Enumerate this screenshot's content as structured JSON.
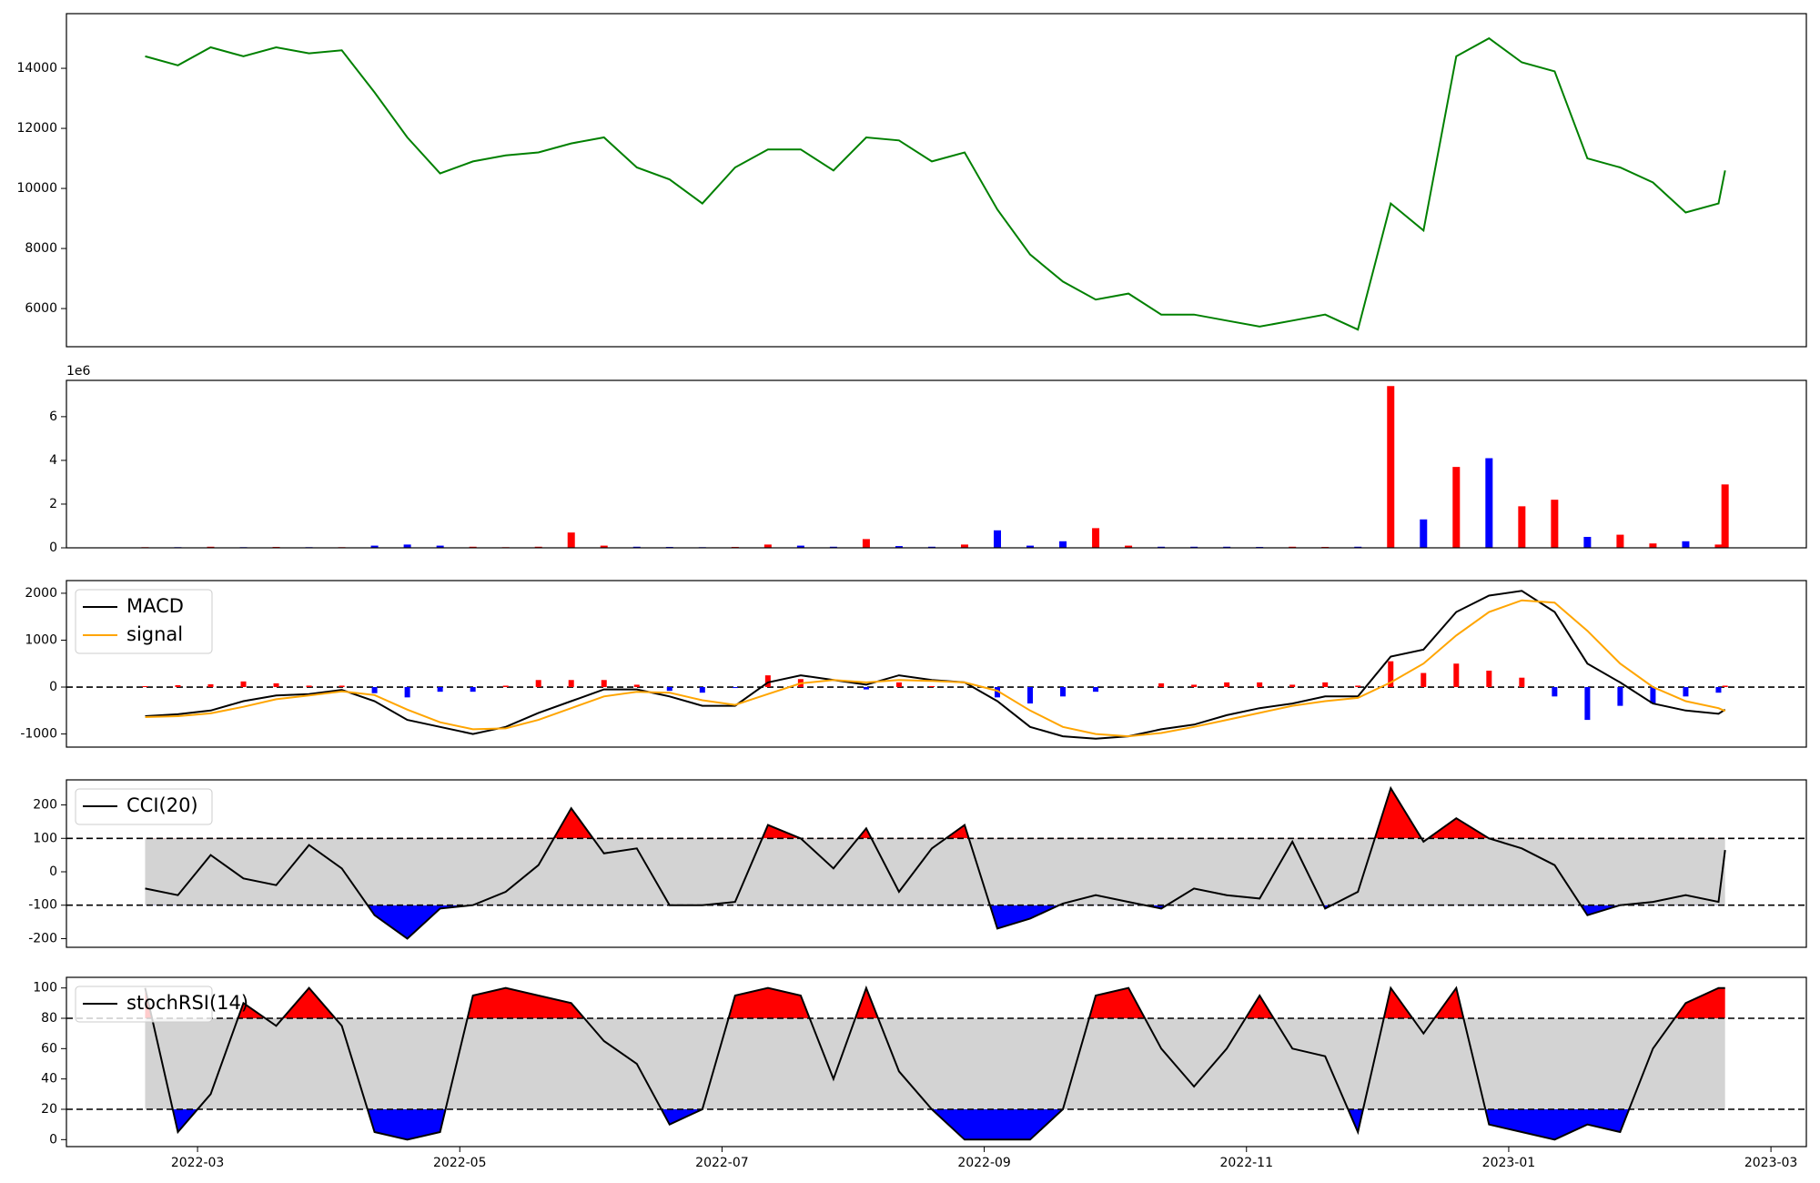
{
  "chart_data": [
    {
      "type": "line",
      "xlim": [
        2.0,
        15.27
      ],
      "ylim": [
        4730,
        15820
      ],
      "yticks": [
        6000,
        8000,
        10000,
        12000,
        14000
      ],
      "x": [
        2.6,
        2.85,
        3.1,
        3.35,
        3.6,
        3.85,
        4.1,
        4.35,
        4.6,
        4.85,
        5.1,
        5.35,
        5.6,
        5.85,
        6.1,
        6.35,
        6.6,
        6.85,
        7.1,
        7.35,
        7.6,
        7.85,
        8.1,
        8.35,
        8.6,
        8.85,
        9.1,
        9.35,
        9.6,
        9.85,
        10.1,
        10.35,
        10.6,
        10.85,
        11.1,
        11.35,
        11.6,
        11.85,
        12.1,
        12.35,
        12.6,
        12.85,
        13.1,
        13.35,
        13.6,
        13.85,
        14.1,
        14.35,
        14.6,
        14.65
      ],
      "series": [
        {
          "color": "#008000",
          "values": [
            14400,
            14100,
            14700,
            14400,
            14700,
            14500,
            14600,
            13200,
            11700,
            10500,
            10900,
            11100,
            11200,
            11500,
            11700,
            10700,
            10300,
            9500,
            10700,
            11300,
            11300,
            10600,
            11700,
            11600,
            10900,
            11200,
            9300,
            7800,
            6900,
            6300,
            6500,
            5800,
            5800,
            5600,
            5400,
            5600,
            5800,
            5300,
            9500,
            8600,
            14400,
            15000,
            14200,
            13900,
            11000,
            10700,
            10200,
            9200,
            9500,
            10600
          ]
        }
      ]
    },
    {
      "type": "bar",
      "xlim": [
        2.0,
        15.27
      ],
      "ylim": [
        0,
        7.66
      ],
      "yticks": [
        0,
        2,
        4,
        6
      ],
      "offset_label": "1e6",
      "x": [
        2.6,
        2.85,
        3.1,
        3.35,
        3.6,
        3.85,
        4.1,
        4.35,
        4.6,
        4.85,
        5.1,
        5.35,
        5.6,
        5.85,
        6.1,
        6.35,
        6.6,
        6.85,
        7.1,
        7.35,
        7.6,
        7.85,
        8.1,
        8.35,
        8.6,
        8.85,
        9.1,
        9.35,
        9.6,
        9.85,
        10.1,
        10.35,
        10.6,
        10.85,
        11.1,
        11.35,
        11.6,
        11.85,
        12.1,
        12.35,
        12.6,
        12.85,
        13.1,
        13.35,
        13.6,
        13.85,
        14.1,
        14.35,
        14.6,
        14.65
      ],
      "values": [
        0.03,
        0.03,
        0.05,
        0.03,
        0.04,
        0.03,
        0.03,
        0.1,
        0.15,
        0.1,
        0.05,
        0.03,
        0.05,
        0.7,
        0.1,
        0.05,
        0.04,
        0.03,
        0.04,
        0.15,
        0.1,
        0.05,
        0.4,
        0.08,
        0.05,
        0.15,
        0.8,
        0.1,
        0.3,
        0.9,
        0.1,
        0.05,
        0.05,
        0.05,
        0.04,
        0.05,
        0.04,
        0.05,
        7.4,
        1.3,
        3.7,
        4.1,
        1.9,
        2.2,
        0.5,
        0.6,
        0.2,
        0.3,
        0.15,
        2.9
      ],
      "colors": [
        "red",
        "blue",
        "red",
        "blue",
        "red",
        "blue",
        "red",
        "blue",
        "blue",
        "blue",
        "red",
        "red",
        "red",
        "red",
        "red",
        "blue",
        "blue",
        "blue",
        "red",
        "red",
        "blue",
        "blue",
        "red",
        "blue",
        "blue",
        "red",
        "blue",
        "blue",
        "blue",
        "red",
        "red",
        "blue",
        "blue",
        "blue",
        "blue",
        "red",
        "red",
        "blue",
        "red",
        "blue",
        "red",
        "blue",
        "red",
        "red",
        "blue",
        "red",
        "red",
        "blue",
        "red",
        "red"
      ]
    },
    {
      "type": "line",
      "xlim": [
        2.0,
        15.27
      ],
      "ylim": [
        -1280,
        2270
      ],
      "yticks": [
        -1000,
        0,
        1000,
        2000
      ],
      "hline": 0,
      "legend": "upper left",
      "x": [
        2.6,
        2.85,
        3.1,
        3.35,
        3.6,
        3.85,
        4.1,
        4.35,
        4.6,
        4.85,
        5.1,
        5.35,
        5.6,
        5.85,
        6.1,
        6.35,
        6.6,
        6.85,
        7.1,
        7.35,
        7.6,
        7.85,
        8.1,
        8.35,
        8.6,
        8.85,
        9.1,
        9.35,
        9.6,
        9.85,
        10.1,
        10.35,
        10.6,
        10.85,
        11.1,
        11.35,
        11.6,
        11.85,
        12.1,
        12.35,
        12.6,
        12.85,
        13.1,
        13.35,
        13.6,
        13.85,
        14.1,
        14.35,
        14.6,
        14.65
      ],
      "series": [
        {
          "name": "MACD",
          "color": "#000000",
          "values": [
            -620,
            -580,
            -500,
            -300,
            -180,
            -150,
            -60,
            -300,
            -700,
            -850,
            -1000,
            -850,
            -550,
            -300,
            -50,
            -50,
            -200,
            -400,
            -400,
            100,
            250,
            150,
            50,
            250,
            150,
            100,
            -300,
            -850,
            -1050,
            -1100,
            -1050,
            -900,
            -800,
            -600,
            -450,
            -350,
            -200,
            -200,
            650,
            800,
            1600,
            1950,
            2050,
            1600,
            500,
            100,
            -350,
            -500,
            -570,
            -480
          ]
        },
        {
          "name": "signal",
          "color": "#ffa500",
          "values": [
            -640,
            -620,
            -560,
            -420,
            -260,
            -180,
            -90,
            -170,
            -480,
            -750,
            -900,
            -880,
            -700,
            -450,
            -200,
            -100,
            -120,
            -280,
            -380,
            -150,
            80,
            150,
            100,
            150,
            130,
            100,
            -80,
            -500,
            -850,
            -1000,
            -1050,
            -980,
            -850,
            -700,
            -550,
            -400,
            -300,
            -230,
            100,
            500,
            1100,
            1600,
            1850,
            1800,
            1200,
            500,
            0,
            -300,
            -450,
            -510
          ]
        }
      ],
      "histogram": {
        "up_color": "red",
        "down_color": "blue",
        "values": [
          20,
          40,
          60,
          120,
          80,
          30,
          30,
          -130,
          -220,
          -100,
          -100,
          30,
          150,
          150,
          150,
          50,
          -80,
          -120,
          -20,
          250,
          170,
          0,
          -50,
          100,
          20,
          0,
          -220,
          -350,
          -200,
          -100,
          0,
          80,
          50,
          100,
          100,
          50,
          100,
          30,
          550,
          300,
          500,
          350,
          200,
          -200,
          -700,
          -400,
          -350,
          -200,
          -120,
          30
        ]
      }
    },
    {
      "type": "band",
      "xlim": [
        2.0,
        15.27
      ],
      "ylim": [
        -226,
        275
      ],
      "yticks": [
        -200,
        -100,
        0,
        100,
        200
      ],
      "upper": 100,
      "lower": -100,
      "band_color": "#d3d3d3",
      "above_color": "red",
      "below_color": "blue",
      "legend": "upper left",
      "x": [
        2.6,
        2.85,
        3.1,
        3.35,
        3.6,
        3.85,
        4.1,
        4.35,
        4.6,
        4.85,
        5.1,
        5.35,
        5.6,
        5.85,
        6.1,
        6.35,
        6.6,
        6.85,
        7.1,
        7.35,
        7.6,
        7.85,
        8.1,
        8.35,
        8.6,
        8.85,
        9.1,
        9.35,
        9.6,
        9.85,
        10.1,
        10.35,
        10.6,
        10.85,
        11.1,
        11.35,
        11.6,
        11.85,
        12.1,
        12.35,
        12.6,
        12.85,
        13.1,
        13.35,
        13.6,
        13.85,
        14.1,
        14.35,
        14.6,
        14.65
      ],
      "series": [
        {
          "name": "CCI(20)",
          "color": "#000000",
          "values": [
            -50,
            -70,
            50,
            -20,
            -40,
            80,
            10,
            -130,
            -200,
            -110,
            -100,
            -60,
            20,
            190,
            55,
            70,
            -100,
            -100,
            -90,
            140,
            100,
            10,
            130,
            -60,
            70,
            140,
            -170,
            -140,
            -95,
            -70,
            -90,
            -110,
            -50,
            -70,
            -80,
            90,
            -110,
            -60,
            250,
            90,
            160,
            100,
            70,
            20,
            -130,
            -100,
            -90,
            -70,
            -90,
            65
          ]
        }
      ]
    },
    {
      "type": "band",
      "xlim": [
        2.0,
        15.27
      ],
      "ylim": [
        -4.6,
        107
      ],
      "yticks": [
        0,
        20,
        40,
        60,
        80,
        100
      ],
      "upper": 80,
      "lower": 20,
      "band_color": "#d3d3d3",
      "above_color": "red",
      "below_color": "blue",
      "legend": "upper left",
      "xticks": [
        {
          "value": 3,
          "label": "2022-03"
        },
        {
          "value": 5,
          "label": "2022-05"
        },
        {
          "value": 7,
          "label": "2022-07"
        },
        {
          "value": 9,
          "label": "2022-09"
        },
        {
          "value": 11,
          "label": "2022-11"
        },
        {
          "value": 13,
          "label": "2023-01"
        },
        {
          "value": 15,
          "label": "2023-03"
        }
      ],
      "x": [
        2.6,
        2.85,
        3.1,
        3.35,
        3.6,
        3.85,
        4.1,
        4.35,
        4.6,
        4.85,
        5.1,
        5.35,
        5.6,
        5.85,
        6.1,
        6.35,
        6.6,
        6.85,
        7.1,
        7.35,
        7.6,
        7.85,
        8.1,
        8.35,
        8.6,
        8.85,
        9.1,
        9.35,
        9.6,
        9.85,
        10.1,
        10.35,
        10.6,
        10.85,
        11.1,
        11.35,
        11.6,
        11.85,
        12.1,
        12.35,
        12.6,
        12.85,
        13.1,
        13.35,
        13.6,
        13.85,
        14.1,
        14.35,
        14.6,
        14.65
      ],
      "series": [
        {
          "name": "stochRSI(14)",
          "color": "#000000",
          "values": [
            100,
            5,
            30,
            90,
            75,
            100,
            75,
            5,
            0,
            5,
            95,
            100,
            95,
            90,
            65,
            50,
            10,
            20,
            95,
            100,
            95,
            40,
            100,
            45,
            20,
            0,
            0,
            0,
            20,
            95,
            100,
            60,
            35,
            60,
            95,
            60,
            55,
            5,
            100,
            70,
            100,
            10,
            5,
            0,
            10,
            5,
            60,
            90,
            100,
            100
          ]
        }
      ]
    }
  ]
}
